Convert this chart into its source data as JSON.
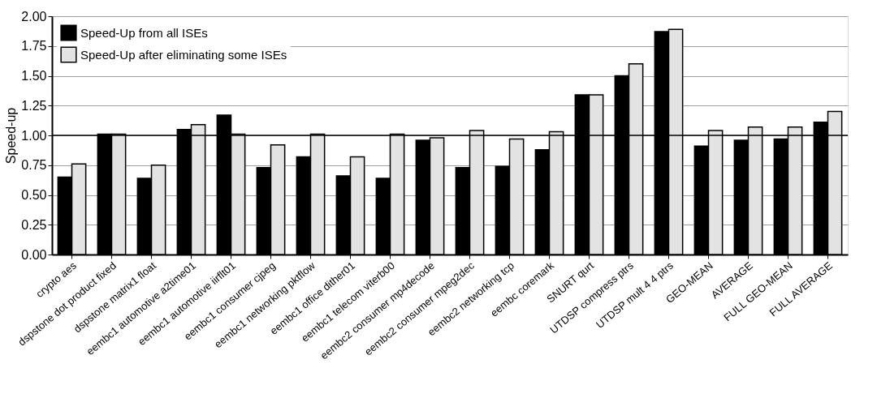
{
  "chart_data": {
    "type": "bar",
    "ylabel": "Speed-up",
    "categories": [
      "crypto aes",
      "dspstone dot product fixed",
      "dspstone matrix1 float",
      "eembc1 automotive a2time01",
      "eembc1 automotive iirflt01",
      "eembc1 consumer cjpeg",
      "eembc1 networking pktflow",
      "eembc1 office dither01",
      "eembc1 telecom viterb00",
      "eembc2 consumer mp4decode",
      "eembc2 consumer mpeg2dec",
      "eembc2 networking tcp",
      "eembc coremark",
      "SNURT qurt",
      "UTDSP compress ptrs",
      "UTDSP mult 4 4 ptrs",
      "GEO-MEAN",
      "AVERAGE",
      "FULL GEO-MEAN",
      "FULL AVERAGE"
    ],
    "series": [
      {
        "name": "Speed-Up from all ISEs",
        "color": "#000000",
        "values": [
          0.65,
          1.01,
          0.64,
          1.05,
          1.17,
          0.73,
          0.82,
          0.66,
          0.64,
          0.96,
          0.73,
          0.74,
          0.88,
          1.34,
          1.5,
          1.87,
          0.91,
          0.96,
          0.97,
          1.11
        ]
      },
      {
        "name": "Speed-Up after eliminating some ISEs",
        "color": "#e3e3e3",
        "values": [
          0.76,
          1.01,
          0.75,
          1.09,
          1.01,
          0.92,
          1.01,
          0.82,
          1.01,
          0.98,
          1.04,
          0.97,
          1.03,
          1.34,
          1.6,
          1.89,
          1.04,
          1.07,
          1.07,
          1.2
        ]
      }
    ],
    "ylim": [
      0,
      2
    ],
    "yticks": [
      {
        "value": 0,
        "label": "0.00"
      },
      {
        "value": 0.25,
        "label": "0.25"
      },
      {
        "value": 0.5,
        "label": "0.50"
      },
      {
        "value": 0.75,
        "label": "0.75"
      },
      {
        "value": 1,
        "label": "1.00"
      },
      {
        "value": 1.25,
        "label": "1.25"
      },
      {
        "value": 1.5,
        "label": "1.50"
      },
      {
        "value": 1.75,
        "label": "1.75"
      },
      {
        "value": 2,
        "label": "2.00"
      }
    ],
    "grid": "y",
    "legend": "top left",
    "ref_lines": [
      {
        "axis": "y",
        "value": 1,
        "color": "#000000"
      }
    ]
  }
}
